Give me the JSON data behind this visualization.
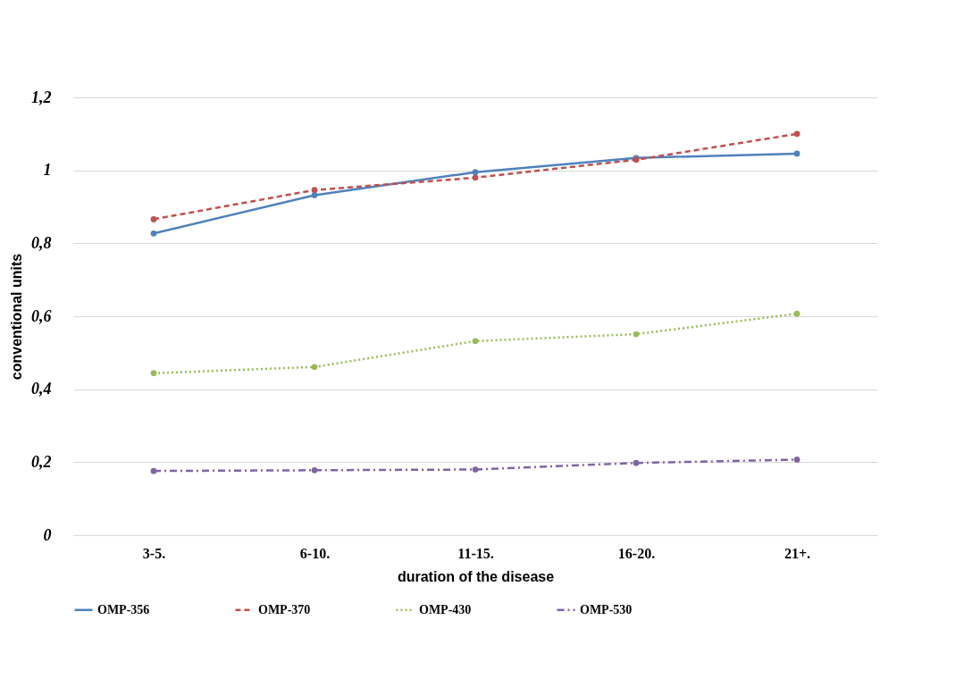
{
  "chart_data": {
    "type": "line",
    "xlabel": "duration of the disease",
    "ylabel": "conventional units",
    "categories": [
      "3-5.",
      "6-10.",
      "11-15.",
      "16-20.",
      "21+."
    ],
    "series": [
      {
        "name": "OMP-356",
        "color": "#4f81bd",
        "line_style": "solid",
        "values": [
          0.827,
          0.932,
          0.995,
          1.034,
          1.046
        ]
      },
      {
        "name": "OMP-370",
        "color": "#c0504d",
        "line_style": "dashed",
        "values": [
          0.866,
          0.946,
          0.98,
          1.029,
          1.1
        ]
      },
      {
        "name": "OMP-430",
        "color": "#9bbb59",
        "line_style": "dotted",
        "values": [
          0.444,
          0.461,
          0.532,
          0.551,
          0.607
        ]
      },
      {
        "name": "OMP-530",
        "color": "#8064a2",
        "line_style": "dashdot",
        "values": [
          0.176,
          0.178,
          0.18,
          0.198,
          0.207
        ]
      }
    ],
    "ylim": [
      0,
      1.2
    ],
    "yticks": [
      0,
      {
        "value": 0.2,
        "label": "0,2"
      },
      {
        "value": 0.4,
        "label": "0,4"
      },
      {
        "value": 0.6,
        "label": "0,6"
      },
      {
        "value": 0.8,
        "label": "0,8"
      },
      1,
      {
        "value": 1.2,
        "label": "1,2"
      }
    ],
    "grid": "y",
    "legend": "bottom",
    "marker": "circle"
  }
}
